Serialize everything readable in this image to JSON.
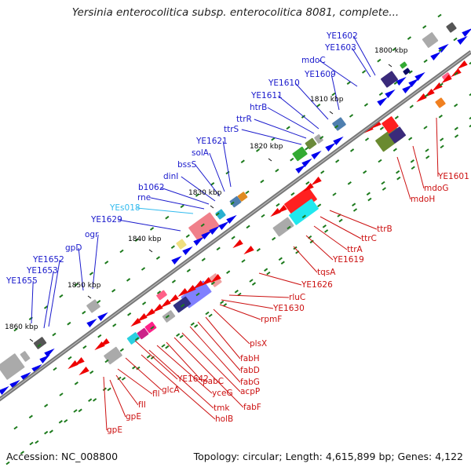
{
  "title": "Yersinia enterocolitica subsp. enterocolitica 8081, complete...",
  "footer": {
    "accession": "Accession: NC_008800",
    "topology": "Topology: circular; Length: 4,615,899 bp; Genes: 4,122"
  },
  "colors": {
    "label_plus": "#1a1acc",
    "label_minus": "#cc1111",
    "label_rna": "#33bbee",
    "backbone": "#777777",
    "tick": "#1c7a1c",
    "arrow_plus": "#0000ee",
    "arrow_minus": "#ee0000"
  },
  "scale_ticks": [
    "1800 kbp",
    "1810 kbp",
    "1820 kbp",
    "1830 kbp",
    "1840 kbp",
    "1850 kbp",
    "1860 kbp"
  ],
  "plus_strand_labels": [
    "YE1602",
    "YE1603",
    "mdoC",
    "YE1609",
    "YE1610",
    "YE1611",
    "htrB",
    "ttrR",
    "ttrS",
    "YE1621",
    "solA",
    "bssS",
    "dinI",
    "b1062",
    "rne",
    "YEs018",
    "YE1629",
    "ogr",
    "gpD",
    "YE1652",
    "YE1653",
    "YE1655"
  ],
  "minus_strand_labels": [
    "YE1601",
    "mdoG",
    "mdoH",
    "ttrB",
    "ttrC",
    "ttrA",
    "YE1619",
    "tqsA",
    "YE1626",
    "rluC",
    "YE1630",
    "rpmF",
    "plsX",
    "fabH",
    "fabD",
    "fabG",
    "acpP",
    "fabF",
    "pabC",
    "yceG",
    "tmk",
    "holB",
    "YE1642",
    "glcA",
    "fll",
    "fII",
    "gpE",
    "gpE"
  ]
}
